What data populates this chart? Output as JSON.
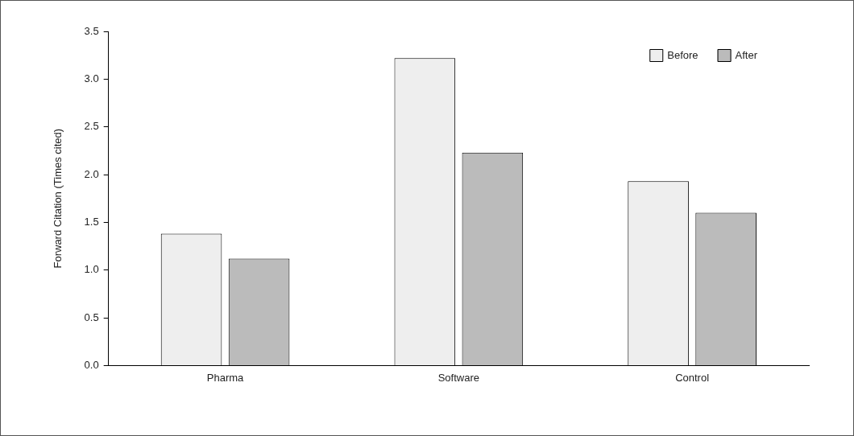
{
  "chart_data": {
    "type": "bar",
    "ylabel": "Forward Citation (Times cited)",
    "categories": [
      "Pharma",
      "Software",
      "Control"
    ],
    "series": [
      {
        "name": "Before",
        "color": "#eeeeee",
        "values": [
          1.38,
          3.22,
          1.93
        ]
      },
      {
        "name": "After",
        "color": "#bbbbbb",
        "values": [
          1.12,
          2.23,
          1.6
        ]
      }
    ],
    "ylim": [
      0,
      3.5
    ],
    "yticks": [
      {
        "value": 0,
        "label": "0.0"
      },
      {
        "value": 0.5,
        "label": "0.5"
      },
      {
        "value": 1,
        "label": "1.0"
      },
      {
        "value": 1.5,
        "label": "1.5"
      },
      {
        "value": 2,
        "label": "2.0"
      },
      {
        "value": 2.5,
        "label": "2.5"
      },
      {
        "value": 3,
        "label": "3.0"
      },
      {
        "value": 3.5,
        "label": "3.5"
      }
    ],
    "grid": false,
    "legend": "top right"
  }
}
